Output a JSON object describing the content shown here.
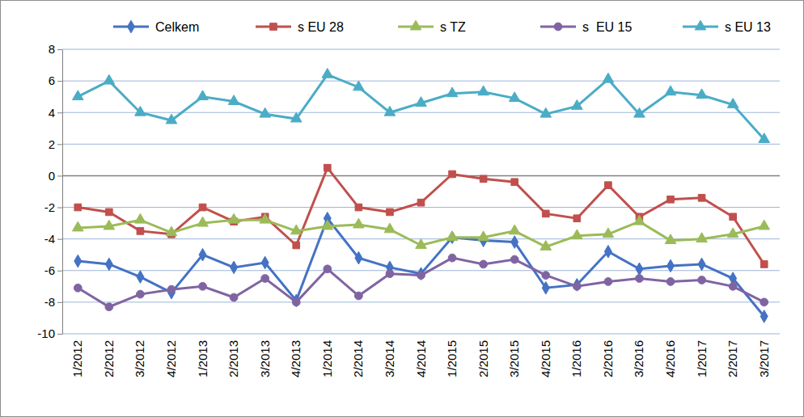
{
  "chart_data": {
    "type": "line",
    "categories": [
      "1/2012",
      "2/2012",
      "3/2012",
      "4/2012",
      "1/2013",
      "2/2013",
      "3/2013",
      "4/2013",
      "1/2014",
      "2/2014",
      "3/2014",
      "4/2014",
      "1/2015",
      "2/2015",
      "3/2015",
      "4/2015",
      "1/2016",
      "2/2016",
      "3/2016",
      "4/2016",
      "1/2017",
      "2/2017",
      "3/2017"
    ],
    "series": [
      {
        "name": "Celkem",
        "color": "#4472c4",
        "marker": "diamond",
        "values": [
          -5.4,
          -5.6,
          -6.4,
          -7.4,
          -5.0,
          -5.8,
          -5.5,
          -7.9,
          -2.7,
          -5.2,
          -5.8,
          -6.2,
          -3.9,
          -4.1,
          -4.2,
          -7.1,
          -6.9,
          -4.8,
          -5.9,
          -5.7,
          -5.6,
          -6.5,
          -8.9
        ]
      },
      {
        "name": "s EU 28",
        "color": "#c0504d",
        "marker": "square",
        "values": [
          -2.0,
          -2.3,
          -3.5,
          -3.7,
          -2.0,
          -2.9,
          -2.6,
          -4.4,
          0.5,
          -2.0,
          -2.3,
          -1.7,
          0.1,
          -0.2,
          -0.4,
          -2.4,
          -2.7,
          -0.6,
          -2.6,
          -1.5,
          -1.4,
          -2.6,
          -5.6
        ]
      },
      {
        "name": "s TZ",
        "color": "#9bbb59",
        "marker": "triangle",
        "values": [
          -3.3,
          -3.2,
          -2.8,
          -3.6,
          -3.0,
          -2.8,
          -2.8,
          -3.5,
          -3.2,
          -3.1,
          -3.4,
          -4.4,
          -3.9,
          -3.9,
          -3.5,
          -4.5,
          -3.8,
          -3.7,
          -2.9,
          -4.1,
          -4.0,
          -3.7,
          -3.2
        ]
      },
      {
        "name": "s  EU 15",
        "color": "#8064a2",
        "marker": "circle",
        "values": [
          -7.1,
          -8.3,
          -7.5,
          -7.2,
          -7.0,
          -7.7,
          -6.5,
          -8.0,
          -5.9,
          -7.6,
          -6.2,
          -6.3,
          -5.2,
          -5.6,
          -5.3,
          -6.3,
          -7.0,
          -6.7,
          -6.5,
          -6.7,
          -6.6,
          -7.0,
          -8.0
        ]
      },
      {
        "name": "s EU 13",
        "color": "#4bacc6",
        "marker": "triangle",
        "values": [
          5.0,
          6.0,
          4.0,
          3.5,
          5.0,
          4.7,
          3.9,
          3.6,
          6.4,
          5.6,
          4.0,
          4.6,
          5.2,
          5.3,
          4.9,
          3.9,
          4.4,
          6.1,
          3.9,
          5.3,
          5.1,
          4.5,
          2.3
        ]
      }
    ],
    "ylim": [
      -10,
      8
    ],
    "yticks": [
      -10,
      -8,
      -6,
      -4,
      -2,
      0,
      2,
      4,
      6,
      8
    ],
    "grid": true,
    "legend": "top"
  }
}
